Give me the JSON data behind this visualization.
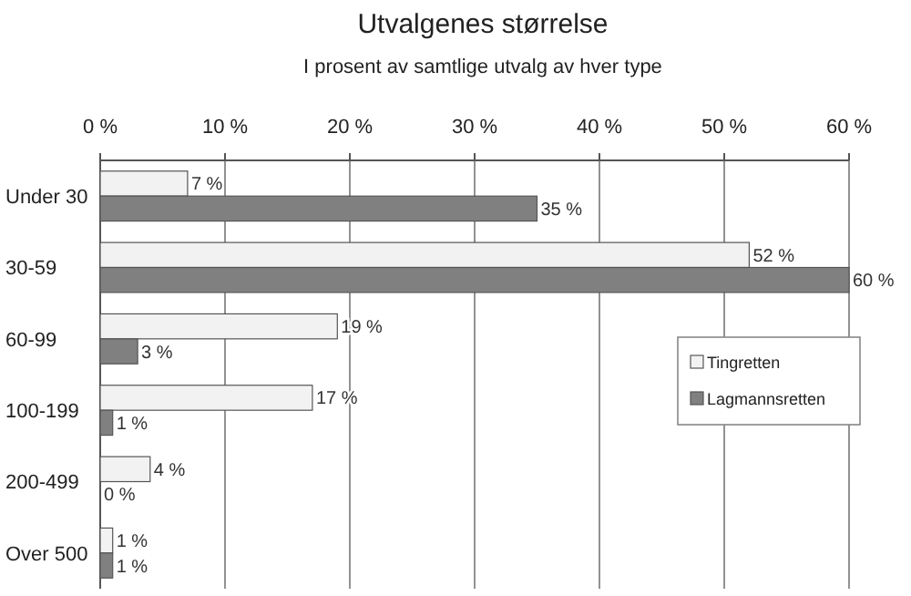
{
  "chart_data": {
    "type": "bar",
    "orientation": "horizontal",
    "title": "Utvalgenes størrelse",
    "subtitle": "I prosent av samtlige utvalg av hver type",
    "categories": [
      "Under 30",
      "30-59",
      "60-99",
      "100-199",
      "200-499",
      "Over 500"
    ],
    "series": [
      {
        "name": "Tingretten",
        "color": "#f2f2f2",
        "values": [
          7,
          52,
          19,
          17,
          4,
          1
        ],
        "value_labels": [
          "7 %",
          "52 %",
          "19 %",
          "17 %",
          "4 %",
          "1 %"
        ]
      },
      {
        "name": "Lagmannsretten",
        "color": "#808080",
        "values": [
          35,
          60,
          3,
          1,
          0,
          1
        ],
        "value_labels": [
          "35 %",
          "60 %",
          "3 %",
          "1 %",
          "0 %",
          "1 %"
        ]
      }
    ],
    "xlim": [
      0,
      60
    ],
    "xticks": [
      {
        "value": 0,
        "label": "0 %"
      },
      {
        "value": 10,
        "label": "10 %"
      },
      {
        "value": 20,
        "label": "20 %"
      },
      {
        "value": 30,
        "label": "30 %"
      },
      {
        "value": 40,
        "label": "40 %"
      },
      {
        "value": 50,
        "label": "50 %"
      },
      {
        "value": 60,
        "label": "60 %"
      }
    ],
    "grid": "x",
    "legend": "right"
  }
}
